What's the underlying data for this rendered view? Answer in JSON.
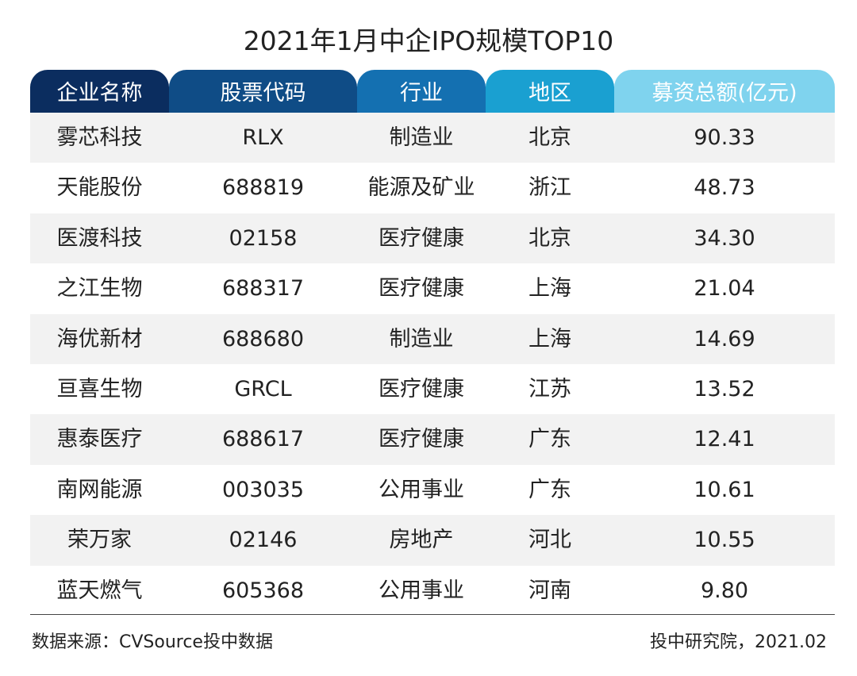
{
  "chart_data": {
    "type": "table",
    "title": "2021年1月中企IPO规模TOP10",
    "columns": [
      {
        "label": "企业名称",
        "color": "#0b2d5f"
      },
      {
        "label": "股票代码",
        "color": "#0f4c86"
      },
      {
        "label": "行业",
        "color": "#1470b1"
      },
      {
        "label": "地区",
        "color": "#1aa0d1"
      },
      {
        "label": "募资总额(亿元)",
        "color": "#7fd3ee"
      }
    ],
    "rows": [
      [
        "雾芯科技",
        "RLX",
        "制造业",
        "北京",
        "90.33"
      ],
      [
        "天能股份",
        "688819",
        "能源及矿业",
        "浙江",
        "48.73"
      ],
      [
        "医渡科技",
        "02158",
        "医疗健康",
        "北京",
        "34.30"
      ],
      [
        "之江生物",
        "688317",
        "医疗健康",
        "上海",
        "21.04"
      ],
      [
        "海优新材",
        "688680",
        "制造业",
        "上海",
        "14.69"
      ],
      [
        "亘喜生物",
        "GRCL",
        "医疗健康",
        "江苏",
        "13.52"
      ],
      [
        "惠泰医疗",
        "688617",
        "医疗健康",
        "广东",
        "12.41"
      ],
      [
        "南网能源",
        "003035",
        "公用事业",
        "广东",
        "10.61"
      ],
      [
        "荣万家",
        "02146",
        "房地产",
        "河北",
        "10.55"
      ],
      [
        "蓝天燃气",
        "605368",
        "公用事业",
        "河南",
        "9.80"
      ]
    ],
    "values": [
      90.33,
      48.73,
      34.3,
      21.04,
      14.69,
      13.52,
      12.41,
      10.61,
      10.55,
      9.8
    ],
    "row_shade_color": "#f2f2f2"
  },
  "footer": {
    "source": "数据来源：CVSource投中数据",
    "credit": "投中研究院，2021.02"
  }
}
